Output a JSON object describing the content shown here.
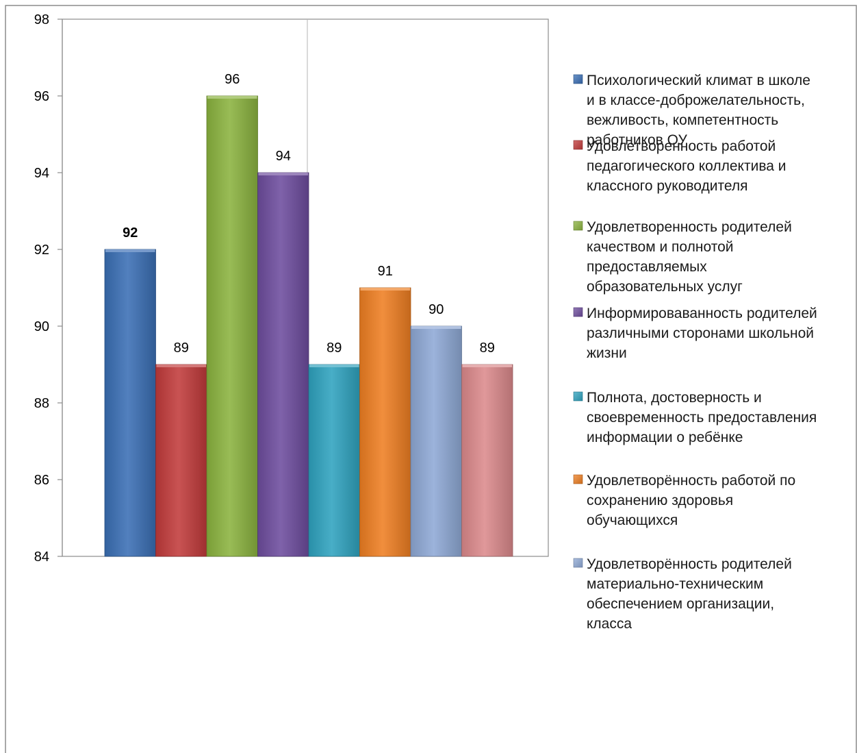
{
  "chart_data": {
    "type": "bar",
    "title": "",
    "xlabel": "",
    "ylabel": "",
    "ylim": [
      84,
      98
    ],
    "yticks": [
      84,
      86,
      88,
      90,
      92,
      94,
      96,
      98
    ],
    "grid": "vertical only",
    "legend_position": "right",
    "series": [
      {
        "name": "Психологический климат в школе и в классе-доброжелательность, вежливость, компетентность работников ОУ",
        "legend_lines": [
          "Психологический климат в школе",
          "и в классе-доброжелательность,",
          "вежливость, компетентность",
          "работников ОУ"
        ],
        "value": 92,
        "label": "92",
        "label_bold": true,
        "color": "#3a6fb5"
      },
      {
        "name": "Удовлетворенность работой педагогического коллектива и классного руководителя",
        "legend_lines": [
          " Удовлетворенность работой",
          "педагогического коллектива и",
          "классного руководителя"
        ],
        "value": 89,
        "label": "89",
        "label_bold": false,
        "color": "#c23b3b"
      },
      {
        "name": "Удовлетворенность родителей качеством и полнотой предоставляемых образовательных услуг",
        "legend_lines": [
          "Удовлетворенность родителей",
          "качеством и полнотой",
          "предоставляемых",
          "образовательных услуг"
        ],
        "value": 96,
        "label": "96",
        "label_bold": false,
        "color": "#8bb33f"
      },
      {
        "name": "Информироваванность родителей различными сторонами школьной жизни",
        "legend_lines": [
          "Информироваванность родителей",
          "различными сторонами школьной",
          "жизни"
        ],
        "value": 94,
        "label": "94",
        "label_bold": false,
        "color": "#6e4d9e"
      },
      {
        "name": "Полнота, достоверность и своевременность предоставления информации о ребёнке",
        "legend_lines": [
          "Полнота, достоверность и",
          "своевременность предоставления",
          "информации о ребёнке"
        ],
        "value": 89,
        "label": "89",
        "label_bold": false,
        "color": "#2fa3bf"
      },
      {
        "name": "Удовлетворённость работой по сохранению здоровья обучающихся",
        "legend_lines": [
          "Удовлетворённость работой по",
          "сохранению здоровья",
          "обучающихся"
        ],
        "value": 91,
        "label": "91",
        "label_bold": false,
        "color": "#ef7f22"
      },
      {
        "name": "Удовлетворённость родителей материально-техническим обеспечением организации, класса",
        "legend_lines": [
          " Удовлетворённость родителей",
          "материально-техническим",
          "обеспечением организации,",
          "класса"
        ],
        "value": 90,
        "label": "90",
        "label_bold": false,
        "color": "#8fa9d6"
      },
      {
        "name": "",
        "legend_lines": [],
        "value": 89,
        "label": "89",
        "label_bold": false,
        "color": "#dc8a8c"
      }
    ]
  }
}
